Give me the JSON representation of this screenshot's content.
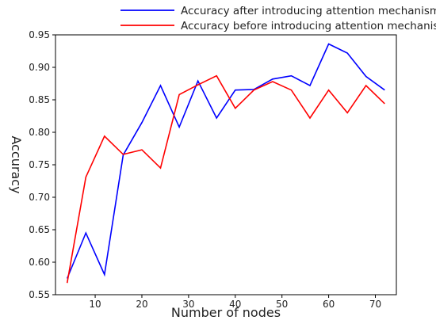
{
  "chart_data": {
    "type": "line",
    "title": "",
    "xlabel": "Number of nodes",
    "ylabel": "Accuracy",
    "xlim": [
      1.5,
      74.5
    ],
    "ylim": [
      0.55,
      0.95
    ],
    "xticks": [
      10,
      20,
      30,
      40,
      50,
      60,
      70
    ],
    "xtick_labels": [
      "10",
      "20",
      "30",
      "40",
      "50",
      "60",
      "70"
    ],
    "yticks": [
      0.55,
      0.6,
      0.65,
      0.7,
      0.75,
      0.8,
      0.85,
      0.9,
      0.95
    ],
    "ytick_labels": [
      "0.55",
      "0.60",
      "0.65",
      "0.70",
      "0.75",
      "0.80",
      "0.85",
      "0.90",
      "0.95"
    ],
    "grid": false,
    "legend_position": "top-right, above plot",
    "x": [
      4,
      8,
      12,
      16,
      20,
      24,
      28,
      32,
      36,
      40,
      44,
      48,
      52,
      56,
      60,
      64,
      68,
      72
    ],
    "series": [
      {
        "name": "Accuracy after introducing attention mechanism",
        "color": "#0000ff",
        "values": [
          0.575,
          0.645,
          0.581,
          0.765,
          0.815,
          0.872,
          0.808,
          0.879,
          0.822,
          0.865,
          0.866,
          0.882,
          0.887,
          0.872,
          0.936,
          0.922,
          0.886,
          0.865
        ]
      },
      {
        "name": "Accuracy before introducing attention mechanism",
        "color": "#ff0000",
        "values": [
          0.568,
          0.731,
          0.794,
          0.766,
          0.773,
          0.745,
          0.858,
          0.873,
          0.887,
          0.837,
          0.865,
          0.878,
          0.865,
          0.822,
          0.865,
          0.83,
          0.872,
          0.844
        ]
      }
    ]
  }
}
